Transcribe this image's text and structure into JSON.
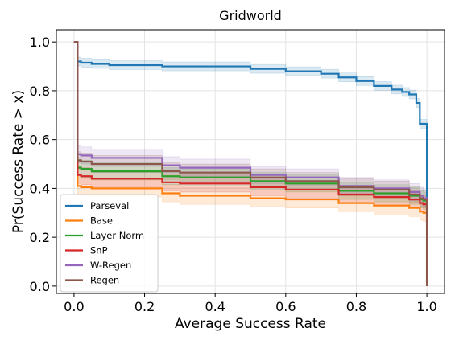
{
  "chart_data": {
    "type": "line",
    "step": true,
    "title": "Gridworld",
    "xlabel": "Average Success Rate",
    "ylabel": "Pr(Success Rate > x)",
    "xlim": [
      -0.05,
      1.05
    ],
    "ylim": [
      -0.03,
      1.05
    ],
    "xticks": [
      "0.0",
      "0.2",
      "0.4",
      "0.6",
      "0.8",
      "1.0"
    ],
    "yticks": [
      "0.0",
      "0.2",
      "0.4",
      "0.6",
      "0.8",
      "1.0"
    ],
    "grid": true,
    "legend_position": "bottom-left",
    "series": [
      {
        "name": "Parseval",
        "color": "#1f77b4",
        "band": 0.018,
        "x": [
          0.0,
          0.01,
          0.02,
          0.05,
          0.1,
          0.25,
          0.5,
          0.6,
          0.7,
          0.75,
          0.8,
          0.85,
          0.9,
          0.93,
          0.95,
          0.97,
          0.98,
          0.99,
          1.0
        ],
        "y": [
          1.0,
          0.92,
          0.915,
          0.91,
          0.905,
          0.9,
          0.89,
          0.88,
          0.87,
          0.855,
          0.84,
          0.82,
          0.805,
          0.795,
          0.785,
          0.75,
          0.665,
          0.665,
          0.3
        ]
      },
      {
        "name": "Base",
        "color": "#ff7f0e",
        "band": 0.035,
        "x": [
          0.0,
          0.01,
          0.02,
          0.05,
          0.25,
          0.3,
          0.5,
          0.6,
          0.75,
          0.85,
          0.95,
          0.98,
          0.99,
          1.0
        ],
        "y": [
          1.0,
          0.41,
          0.405,
          0.4,
          0.38,
          0.37,
          0.36,
          0.355,
          0.34,
          0.33,
          0.32,
          0.305,
          0.3,
          0.0
        ]
      },
      {
        "name": "Layer Norm",
        "color": "#2ca02c",
        "band": 0.035,
        "x": [
          0.0,
          0.01,
          0.02,
          0.05,
          0.25,
          0.3,
          0.5,
          0.6,
          0.75,
          0.85,
          0.95,
          0.98,
          0.99,
          1.0
        ],
        "y": [
          1.0,
          0.485,
          0.48,
          0.47,
          0.45,
          0.445,
          0.43,
          0.42,
          0.39,
          0.38,
          0.37,
          0.355,
          0.35,
          0.0
        ]
      },
      {
        "name": "SnP",
        "color": "#d62728",
        "band": 0.035,
        "x": [
          0.0,
          0.01,
          0.02,
          0.05,
          0.25,
          0.3,
          0.5,
          0.6,
          0.75,
          0.85,
          0.95,
          0.98,
          0.99,
          1.0
        ],
        "y": [
          1.0,
          0.455,
          0.45,
          0.44,
          0.425,
          0.42,
          0.405,
          0.395,
          0.375,
          0.365,
          0.355,
          0.34,
          0.335,
          0.0
        ]
      },
      {
        "name": "W-Regen",
        "color": "#9467bd",
        "band": 0.035,
        "x": [
          0.0,
          0.01,
          0.02,
          0.05,
          0.25,
          0.3,
          0.5,
          0.6,
          0.75,
          0.85,
          0.95,
          0.98,
          0.99,
          1.0
        ],
        "y": [
          1.0,
          0.54,
          0.535,
          0.525,
          0.495,
          0.485,
          0.455,
          0.445,
          0.41,
          0.4,
          0.385,
          0.37,
          0.36,
          0.0
        ]
      },
      {
        "name": "Regen",
        "color": "#8c564b",
        "band": 0.035,
        "x": [
          0.0,
          0.01,
          0.02,
          0.05,
          0.25,
          0.3,
          0.5,
          0.6,
          0.75,
          0.85,
          0.95,
          0.98,
          0.99,
          1.0
        ],
        "y": [
          1.0,
          0.515,
          0.51,
          0.5,
          0.47,
          0.465,
          0.445,
          0.43,
          0.405,
          0.395,
          0.375,
          0.36,
          0.355,
          0.0
        ]
      }
    ]
  }
}
